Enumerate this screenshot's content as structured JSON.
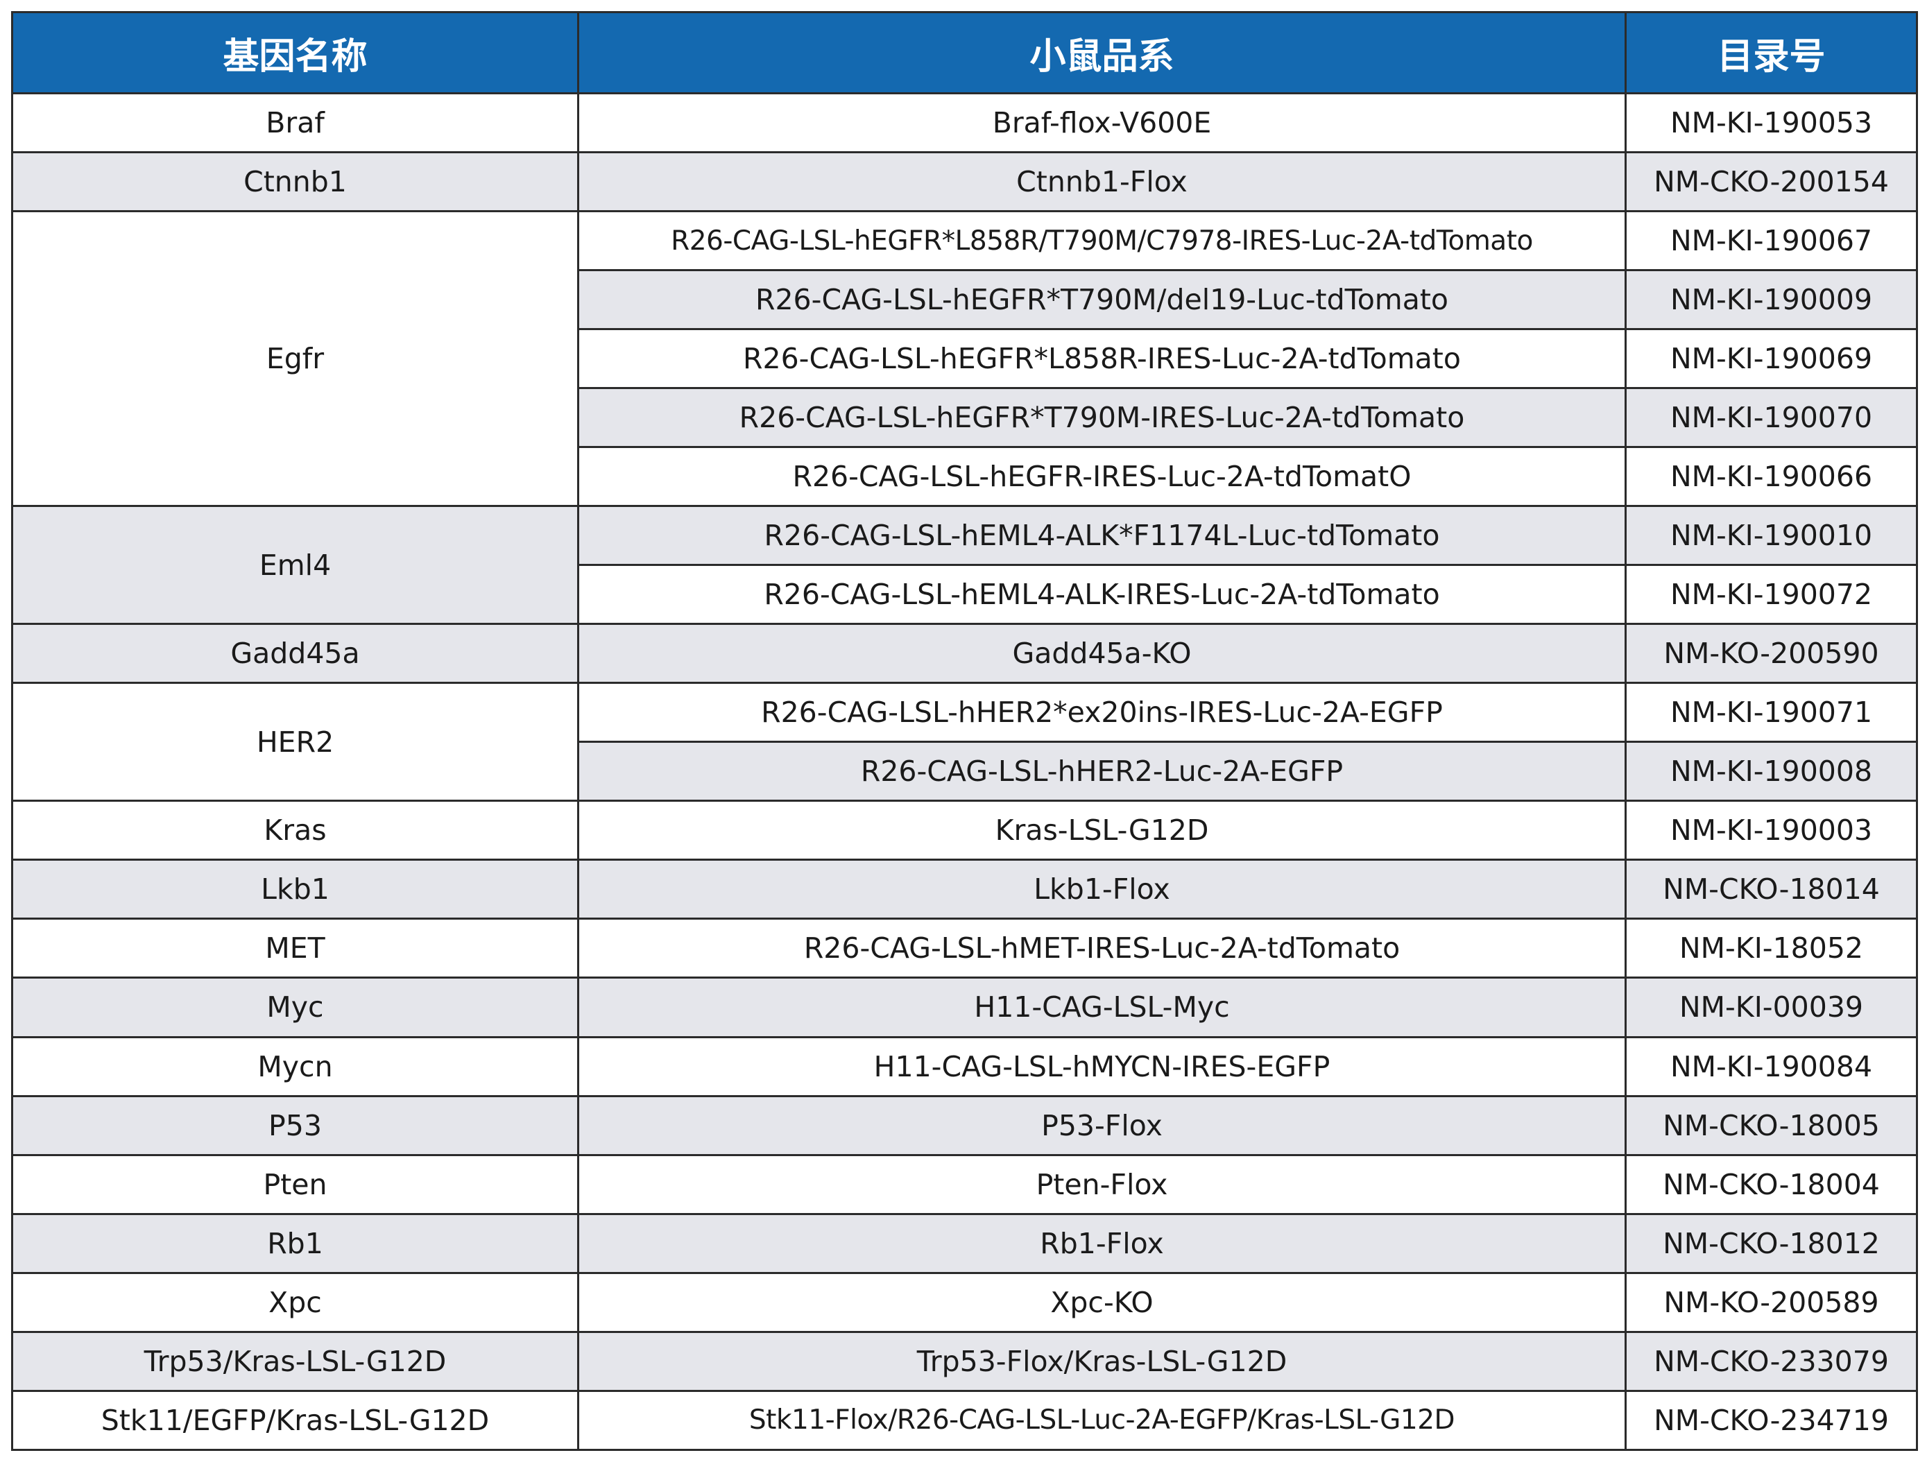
{
  "colors": {
    "header_bg": "#1469b0",
    "header_text": "#ffffff",
    "shaded_row": "#e5e6eb",
    "border": "#2b2b2b"
  },
  "header": {
    "gene": "基因名称",
    "strain": "小鼠品系",
    "catalog": "目录号"
  },
  "rows": [
    {
      "gene": "Braf",
      "strain": "Braf-flox-V600E",
      "catalog": "NM-KI-190053"
    },
    {
      "gene": "Ctnnb1",
      "strain": "Ctnnb1-Flox",
      "catalog": "NM-CKO-200154"
    },
    {
      "gene": "Egfr",
      "strain": "R26-CAG-LSL-hEGFR*L858R/T790M/C7978-IRES-Luc-2A-tdTomato",
      "catalog": "NM-KI-190067"
    },
    {
      "gene": "Egfr",
      "strain": "R26-CAG-LSL-hEGFR*T790M/del19-Luc-tdTomato",
      "catalog": "NM-KI-190009"
    },
    {
      "gene": "Egfr",
      "strain": "R26-CAG-LSL-hEGFR*L858R-IRES-Luc-2A-tdTomato",
      "catalog": "NM-KI-190069"
    },
    {
      "gene": "Egfr",
      "strain": "R26-CAG-LSL-hEGFR*T790M-IRES-Luc-2A-tdTomato",
      "catalog": "NM-KI-190070"
    },
    {
      "gene": "Egfr",
      "strain": "R26-CAG-LSL-hEGFR-IRES-Luc-2A-tdTomatO",
      "catalog": "NM-KI-190066"
    },
    {
      "gene": "Eml4",
      "strain": "R26-CAG-LSL-hEML4-ALK*F1174L-Luc-tdTomato",
      "catalog": "NM-KI-190010"
    },
    {
      "gene": "Eml4",
      "strain": "R26-CAG-LSL-hEML4-ALK-IRES-Luc-2A-tdTomato",
      "catalog": "NM-KI-190072"
    },
    {
      "gene": "Gadd45a",
      "strain": "Gadd45a-KO",
      "catalog": "NM-KO-200590"
    },
    {
      "gene": "HER2",
      "strain": "R26-CAG-LSL-hHER2*ex20ins-IRES-Luc-2A-EGFP",
      "catalog": "NM-KI-190071"
    },
    {
      "gene": "HER2",
      "strain": "R26-CAG-LSL-hHER2-Luc-2A-EGFP",
      "catalog": "NM-KI-190008"
    },
    {
      "gene": "Kras",
      "strain": "Kras-LSL-G12D",
      "catalog": "NM-KI-190003"
    },
    {
      "gene": "Lkb1",
      "strain": "Lkb1-Flox",
      "catalog": "NM-CKO-18014"
    },
    {
      "gene": "MET",
      "strain": "R26-CAG-LSL-hMET-IRES-Luc-2A-tdTomato",
      "catalog": "NM-KI-18052"
    },
    {
      "gene": "Myc",
      "strain": "H11-CAG-LSL-Myc",
      "catalog": "NM-KI-00039"
    },
    {
      "gene": "Mycn",
      "strain": "H11-CAG-LSL-hMYCN-IRES-EGFP",
      "catalog": "NM-KI-190084"
    },
    {
      "gene": "P53",
      "strain": "P53-Flox",
      "catalog": "NM-CKO-18005"
    },
    {
      "gene": "Pten",
      "strain": "Pten-Flox",
      "catalog": "NM-CKO-18004"
    },
    {
      "gene": "Rb1",
      "strain": "Rb1-Flox",
      "catalog": "NM-CKO-18012"
    },
    {
      "gene": "Xpc",
      "strain": "Xpc-KO",
      "catalog": "NM-KO-200589"
    },
    {
      "gene": "Trp53/Kras-LSL-G12D",
      "strain": "Trp53-Flox/Kras-LSL-G12D",
      "catalog": "NM-CKO-233079"
    },
    {
      "gene": "Stk11/EGFP/Kras-LSL-G12D",
      "strain": "Stk11-Flox/R26-CAG-LSL-Luc-2A-EGFP/Kras-LSL-G12D",
      "catalog": "NM-CKO-234719"
    }
  ]
}
